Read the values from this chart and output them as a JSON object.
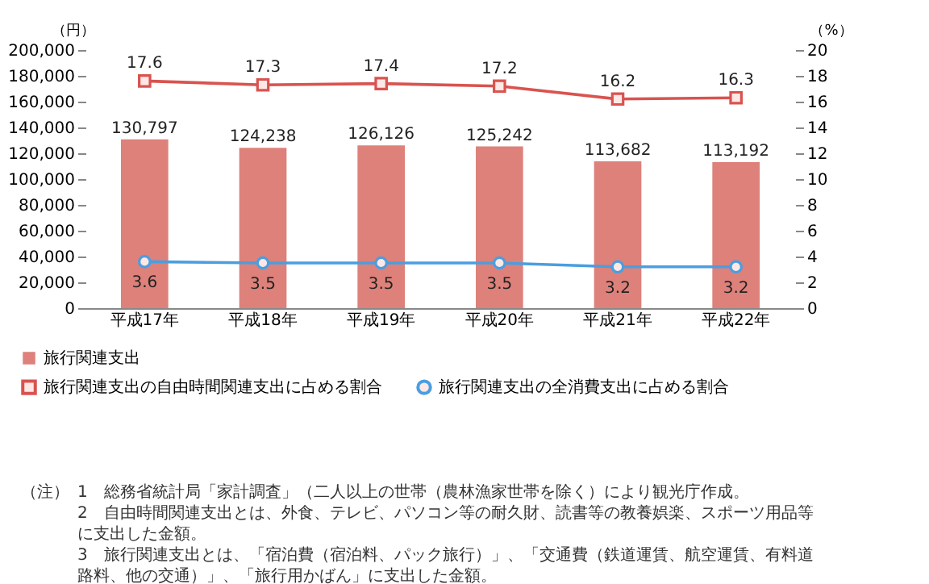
{
  "chart_data": {
    "type": "bar",
    "categories": [
      "平成17年",
      "平成18年",
      "平成19年",
      "平成20年",
      "平成21年",
      "平成22年"
    ],
    "series": [
      {
        "name": "旅行関連支出",
        "color": "#d9736c",
        "values": [
          130797,
          124238,
          126126,
          125242,
          113682,
          113192
        ],
        "value_labels": [
          "130,797",
          "124,238",
          "126,126",
          "125,242",
          "113,682",
          "113,192"
        ]
      },
      {
        "name": "旅行関連支出の自由時間関連支出に占める割合",
        "type": "line",
        "axis": "y2",
        "color": "#d9534f",
        "marker": "square",
        "values": [
          17.6,
          17.3,
          17.4,
          17.2,
          16.2,
          16.3
        ]
      },
      {
        "name": "旅行関連支出の全消費支出に占める割合",
        "type": "line",
        "axis": "y2",
        "color": "#4a9ee0",
        "marker": "circle",
        "values": [
          3.6,
          3.5,
          3.5,
          3.5,
          3.2,
          3.2
        ]
      }
    ],
    "ylabel": "（円）",
    "y2label": "（%）",
    "ylim": [
      0,
      200000
    ],
    "yticks": [
      0,
      {
        "value": 20000,
        "label": "20,000"
      },
      {
        "value": 40000,
        "label": "40,000"
      },
      {
        "value": 60000,
        "label": "60,000"
      },
      {
        "value": 80000,
        "label": "80,000"
      },
      {
        "value": 100000,
        "label": "100,000"
      },
      {
        "value": 120000,
        "label": "120,000"
      },
      {
        "value": 140000,
        "label": "140,000"
      },
      {
        "value": 160000,
        "label": "160,000"
      },
      {
        "value": 180000,
        "label": "180,000"
      },
      {
        "value": 200000,
        "label": "200,000"
      }
    ],
    "y2lim": [
      0,
      20
    ],
    "y2ticks": [
      0,
      2,
      4,
      6,
      8,
      10,
      12,
      14,
      16,
      18,
      20
    ],
    "data_labels": true,
    "legend": "bottom",
    "line_style": "solid",
    "annotations": [
      "（注）",
      "1　総務省統計局「家計調査」（二人以上の世帯（農林漁家世帯を除く）により観光庁作成。",
      "2　自由時間関連支出とは、外食、テレビ、パソコン等の耐久財、読書等の教養娯楽、スポーツ用品等に支出した金額。",
      "3　旅行関連支出とは、「宿泊費（宿泊料、パック旅行）」、「交通費（鉄道運賃、航空運賃、有料道路料、他の交通）」、「旅行用かばん」に支出した金額。"
    ]
  }
}
